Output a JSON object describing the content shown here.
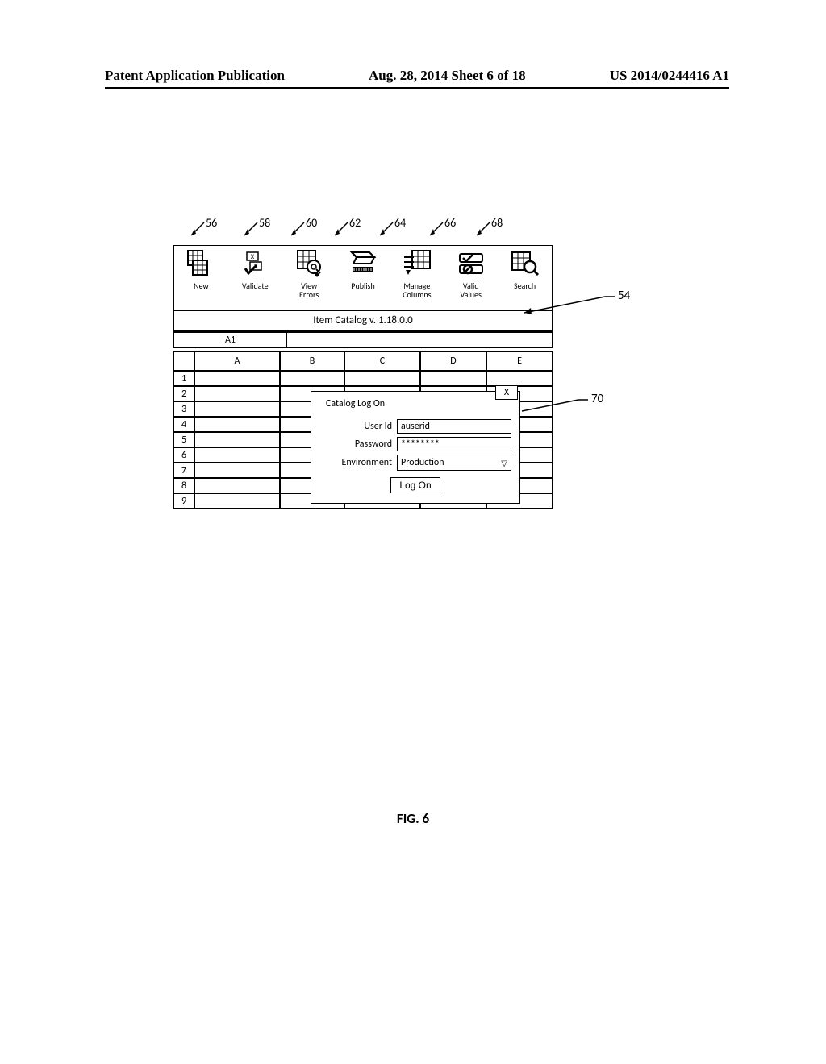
{
  "header": {
    "left": "Patent Application Publication",
    "center": "Aug. 28, 2014  Sheet 6 of 18",
    "right": "US 2014/0244416 A1"
  },
  "callouts": {
    "c56": "56",
    "c58": "58",
    "c60": "60",
    "c62": "62",
    "c64": "64",
    "c66": "66",
    "c68": "68",
    "c54": "54",
    "c70": "70"
  },
  "toolbar": {
    "new": "New",
    "validate": "Validate",
    "view_errors": "View\nErrors",
    "publish": "Publish",
    "manage_columns": "Manage\nColumns",
    "valid_values": "Valid\nValues",
    "search": "Search"
  },
  "titlebar": "Item Catalog v. 1.18.0.0",
  "cellref": "A1",
  "columns": [
    "A",
    "B",
    "C",
    "D",
    "E"
  ],
  "rows": [
    "1",
    "2",
    "3",
    "4",
    "5",
    "6",
    "7",
    "8",
    "9"
  ],
  "dialog": {
    "title": "Catalog Log On",
    "close": "X",
    "userid_label": "User Id",
    "userid_value": "auserid",
    "password_label": "Password",
    "password_value": "********",
    "environment_label": "Environment",
    "environment_value": "Production",
    "submit": "Log On"
  },
  "figcaption": "FIG. 6"
}
